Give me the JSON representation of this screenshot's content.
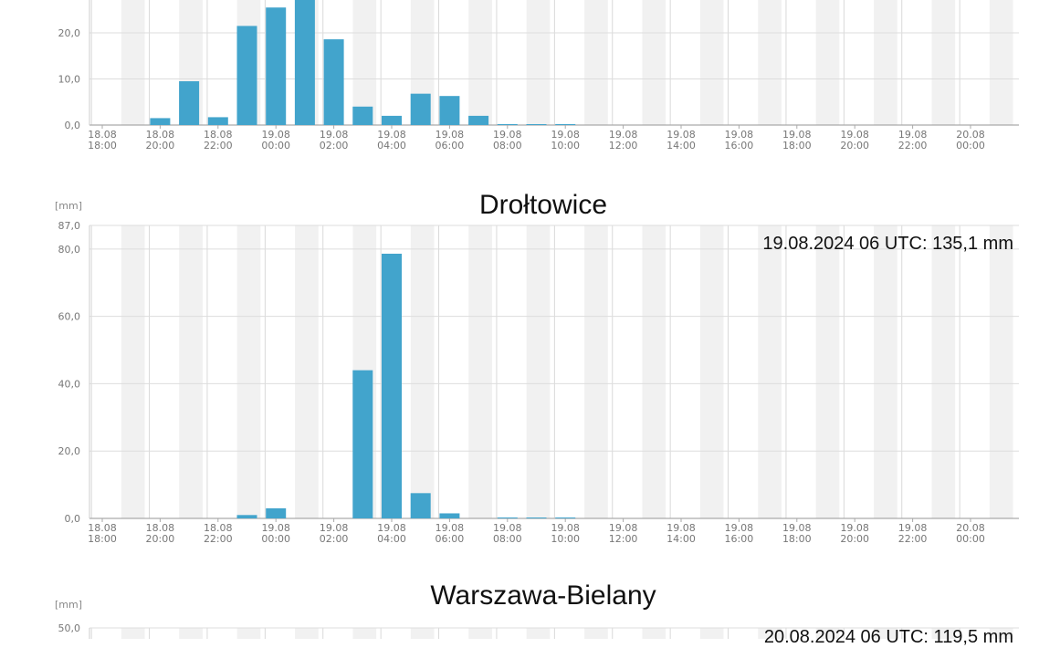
{
  "chart_data": [
    {
      "type": "bar",
      "title": "",
      "unit_label": "",
      "total_label": "",
      "ylim": [
        0,
        30
      ],
      "y_ticks": [
        "0,0",
        "10,0",
        "20,0"
      ],
      "x_ticks": [
        {
          "d": "18.08",
          "t": "18:00"
        },
        {
          "d": "18.08",
          "t": "20:00"
        },
        {
          "d": "18.08",
          "t": "22:00"
        },
        {
          "d": "19.08",
          "t": "00:00"
        },
        {
          "d": "19.08",
          "t": "02:00"
        },
        {
          "d": "19.08",
          "t": "04:00"
        },
        {
          "d": "19.08",
          "t": "06:00"
        },
        {
          "d": "19.08",
          "t": "08:00"
        },
        {
          "d": "19.08",
          "t": "10:00"
        },
        {
          "d": "19.08",
          "t": "12:00"
        },
        {
          "d": "19.08",
          "t": "14:00"
        },
        {
          "d": "19.08",
          "t": "16:00"
        },
        {
          "d": "19.08",
          "t": "18:00"
        },
        {
          "d": "19.08",
          "t": "20:00"
        },
        {
          "d": "19.08",
          "t": "22:00"
        },
        {
          "d": "20.08",
          "t": "00:00"
        }
      ],
      "values": [
        0,
        0,
        1.5,
        9.5,
        1.7,
        21.5,
        25.5,
        28.0,
        18.6,
        4.0,
        2.0,
        6.8,
        6.3,
        2.0,
        0.2,
        0.2,
        0.1,
        0,
        0,
        0,
        0,
        0,
        0,
        0,
        0,
        0,
        0,
        0,
        0,
        0,
        0
      ],
      "grid": true,
      "color": "#42a4cc"
    },
    {
      "type": "bar",
      "title": "Drołtowice",
      "unit_label": "[mm]",
      "total_label": "19.08.2024 06 UTC: 135,1 mm",
      "ylim": [
        0,
        87
      ],
      "y_ticks": [
        "0,0",
        "20,0",
        "40,0",
        "60,0",
        "80,0",
        "87,0"
      ],
      "x_ticks": [
        {
          "d": "18.08",
          "t": "18:00"
        },
        {
          "d": "18.08",
          "t": "20:00"
        },
        {
          "d": "18.08",
          "t": "22:00"
        },
        {
          "d": "19.08",
          "t": "00:00"
        },
        {
          "d": "19.08",
          "t": "02:00"
        },
        {
          "d": "19.08",
          "t": "04:00"
        },
        {
          "d": "19.08",
          "t": "06:00"
        },
        {
          "d": "19.08",
          "t": "08:00"
        },
        {
          "d": "19.08",
          "t": "10:00"
        },
        {
          "d": "19.08",
          "t": "12:00"
        },
        {
          "d": "19.08",
          "t": "14:00"
        },
        {
          "d": "19.08",
          "t": "16:00"
        },
        {
          "d": "19.08",
          "t": "18:00"
        },
        {
          "d": "19.08",
          "t": "20:00"
        },
        {
          "d": "19.08",
          "t": "22:00"
        },
        {
          "d": "20.08",
          "t": "00:00"
        }
      ],
      "values": [
        0,
        0,
        0,
        0,
        0,
        1.0,
        3.0,
        0,
        0,
        44.0,
        78.6,
        7.5,
        1.5,
        0,
        0.2,
        0.2,
        0.1,
        0,
        0,
        0,
        0,
        0,
        0,
        0,
        0,
        0,
        0,
        0,
        0,
        0,
        0
      ],
      "grid": true,
      "color": "#42a4cc"
    },
    {
      "type": "bar",
      "title": "Warszawa-Bielany",
      "unit_label": "[mm]",
      "total_label": "20.08.2024 06 UTC: 119,5 mm",
      "ylim": [
        0,
        50
      ],
      "y_ticks": [
        "50,0"
      ],
      "x_ticks": [],
      "values": [],
      "grid": true,
      "color": "#42a4cc"
    }
  ]
}
